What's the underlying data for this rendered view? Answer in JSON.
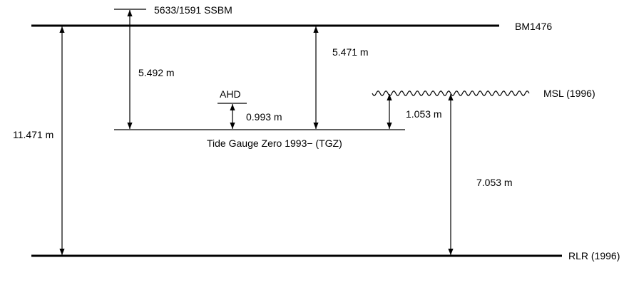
{
  "levels": {
    "ssbm": "5633/1591 SSBM",
    "bm": "BM1476",
    "ahd": "AHD",
    "msl": "MSL (1996)",
    "tgz": "Tide Gauge Zero 1993− (TGZ)",
    "rlr": "RLR (1996)"
  },
  "distances": {
    "bm_to_rlr": "11.471 m",
    "ssbm_to_tgz": "5.492 m",
    "ahd_to_tgz": "0.993 m",
    "bm_to_tgz": "5.471 m",
    "msl_to_tgz": "1.053 m",
    "msl_to_rlr": "7.053 m"
  }
}
